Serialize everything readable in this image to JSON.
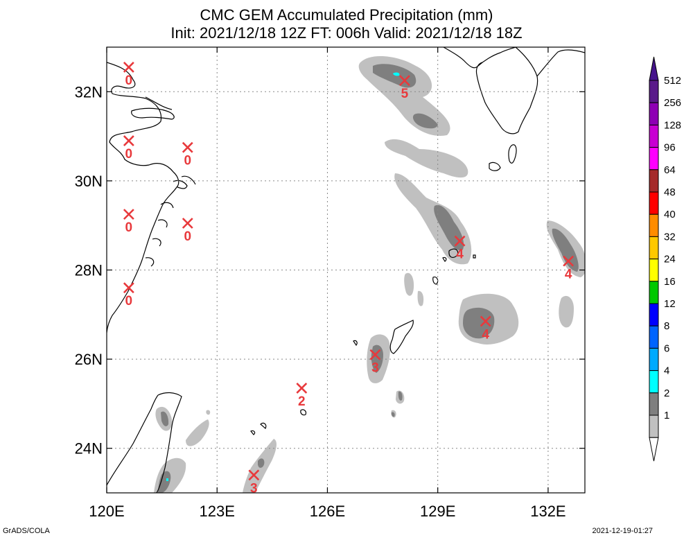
{
  "title": {
    "line1": "CMC GEM Accumulated Precipitation (mm)",
    "line2": "Init: 2021/12/18 12Z  FT: 006h  Valid: 2021/12/18 18Z"
  },
  "footer": {
    "left": "GrADS/COLA",
    "right": "2021-12-19-01:27"
  },
  "map": {
    "lon_range": [
      120,
      133
    ],
    "lat_range": [
      23,
      33
    ],
    "lon_ticks": [
      {
        "v": 120,
        "label": "120E"
      },
      {
        "v": 123,
        "label": "123E"
      },
      {
        "v": 126,
        "label": "126E"
      },
      {
        "v": 129,
        "label": "129E"
      },
      {
        "v": 132,
        "label": "132E"
      }
    ],
    "lat_ticks": [
      {
        "v": 24,
        "label": "24N"
      },
      {
        "v": 26,
        "label": "26N"
      },
      {
        "v": 28,
        "label": "28N"
      },
      {
        "v": 30,
        "label": "30N"
      },
      {
        "v": 32,
        "label": "32N"
      }
    ],
    "stations": [
      {
        "lon": 120.6,
        "lat": 32.55,
        "value": "0"
      },
      {
        "lon": 120.6,
        "lat": 30.9,
        "value": "0"
      },
      {
        "lon": 122.2,
        "lat": 30.75,
        "value": "0"
      },
      {
        "lon": 120.6,
        "lat": 29.25,
        "value": "0"
      },
      {
        "lon": 122.2,
        "lat": 29.05,
        "value": "0"
      },
      {
        "lon": 120.6,
        "lat": 27.6,
        "value": "0"
      },
      {
        "lon": 128.1,
        "lat": 32.25,
        "value": "5"
      },
      {
        "lon": 129.6,
        "lat": 28.65,
        "value": "4"
      },
      {
        "lon": 132.55,
        "lat": 28.2,
        "value": "4"
      },
      {
        "lon": 130.3,
        "lat": 26.85,
        "value": "4"
      },
      {
        "lon": 127.3,
        "lat": 26.1,
        "value": "3"
      },
      {
        "lon": 125.3,
        "lat": 25.35,
        "value": "2"
      },
      {
        "lon": 124.0,
        "lat": 23.4,
        "value": "3"
      }
    ]
  },
  "colorbar": {
    "levels": [
      {
        "label": "512",
        "color": "#5a1a8a"
      },
      {
        "label": "256",
        "color": "#8e00b4"
      },
      {
        "label": "128",
        "color": "#c800d2"
      },
      {
        "label": "96",
        "color": "#ff00ff"
      },
      {
        "label": "64",
        "color": "#a52a2a"
      },
      {
        "label": "48",
        "color": "#ff0000"
      },
      {
        "label": "40",
        "color": "#ff8c00"
      },
      {
        "label": "32",
        "color": "#ffc800"
      },
      {
        "label": "24",
        "color": "#ffff00"
      },
      {
        "label": "16",
        "color": "#00c800"
      },
      {
        "label": "12",
        "color": "#0000ff"
      },
      {
        "label": "8",
        "color": "#0064ff"
      },
      {
        "label": "6",
        "color": "#00aaff"
      },
      {
        "label": "4",
        "color": "#00ffff"
      },
      {
        "label": "2",
        "color": "#7f7f7f"
      },
      {
        "label": "1",
        "color": "#c0c0c0"
      }
    ],
    "top_arrow_color": "#46148c",
    "bottom_arrow_color": "#ffffff"
  },
  "colors": {
    "light_precip": "#c0c0c0",
    "mid_precip": "#7f7f7f",
    "heavy_precip": "#00ffff",
    "station_marker": "#e8393c",
    "coast": "#000000",
    "grid": "#888888"
  }
}
